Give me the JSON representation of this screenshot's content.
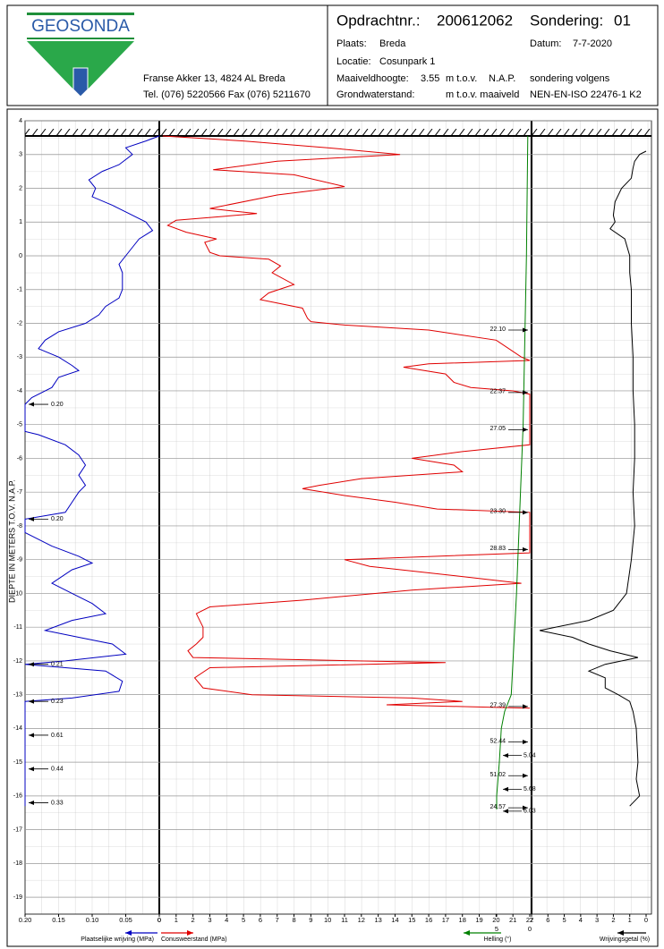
{
  "header": {
    "logo": "GEOSONDA",
    "address": "Franse Akker 13, 4824 AL Breda",
    "phone": "Tel. (076) 5220566 Fax (076) 5211670",
    "order_label": "Opdrachtnr.:",
    "order": "200612062",
    "probe_label": "Sondering:",
    "probe": "01",
    "place_label": "Plaats:",
    "place": "Breda",
    "date_label": "Datum:",
    "date": "7-7-2020",
    "location_label": "Locatie:",
    "location": "Cosunpark 1",
    "surface_label": "Maaiveldhoogte:",
    "surface": 3.55,
    "surface_unit": "m t.o.v.",
    "surface_ref": "N.A.P.",
    "norm_label": "sondering volgens",
    "water_label": "Grondwaterstand:",
    "water_unit": "m t.o.v. maaiveld",
    "norm": "NEN-EN-ISO 22476-1 K2"
  },
  "chart_data": {
    "type": "cpt",
    "ylabel": "DIEPTE IN METERS T.O.V. N.A.P.",
    "ylim": [
      4,
      -19.5
    ],
    "yticks": [
      4,
      3,
      2,
      1,
      0,
      -1,
      -2,
      -3,
      -4,
      -5,
      -6,
      -7,
      -8,
      -9,
      -10,
      -11,
      -12,
      -13,
      -14,
      -15,
      -16,
      -17,
      -18,
      -19
    ],
    "friction_axis": {
      "label": "Plaatselijke wrijving (MPa)",
      "xlim": [
        0.2,
        0
      ],
      "xticks": [
        {
          "value": 0.2,
          "label": "0.20"
        },
        0.15,
        {
          "value": 0.1,
          "label": "0.10"
        },
        0.05,
        0
      ]
    },
    "cone_axis": {
      "label": "Conusweerstand (MPa)",
      "xlim": [
        0,
        22
      ],
      "xticks": [
        0,
        1,
        2,
        3,
        4,
        5,
        6,
        7,
        8,
        9,
        10,
        11,
        12,
        13,
        14,
        15,
        16,
        17,
        18,
        19,
        20,
        21,
        22
      ]
    },
    "tilt_axis": {
      "label": "Helling (°)",
      "xlim": [
        0,
        5
      ],
      "xticks": [
        5,
        0
      ]
    },
    "ratio_axis": {
      "label": "Wrijvingsgetal (%)",
      "xlim": [
        7,
        0
      ],
      "xticks": [
        7,
        6,
        5,
        4,
        3,
        2,
        1,
        0
      ]
    },
    "series": [
      {
        "name": "Conusweerstand",
        "axis": "cone_axis",
        "color": "#e00000",
        "depth": [
          3.55,
          3.4,
          3.2,
          3.0,
          2.8,
          2.55,
          2.4,
          2.05,
          1.8,
          1.4,
          1.25,
          1.05,
          0.9,
          0.7,
          0.5,
          0.4,
          0.1,
          0.0,
          -0.1,
          -0.3,
          -0.5,
          -0.85,
          -1.1,
          -1.3,
          -1.55,
          -1.85,
          -1.95,
          -2.05,
          -2.2,
          -2.5,
          -3.0,
          -3.1,
          -3.2,
          -3.3,
          -3.5,
          -3.75,
          -3.9,
          -4.0,
          -4.1,
          -5.6,
          -5.8,
          -6.0,
          -6.2,
          -6.4,
          -6.6,
          -6.8,
          -6.9,
          -7.1,
          -7.3,
          -7.5,
          -7.6,
          -8.8,
          -9.0,
          -9.2,
          -9.5,
          -9.7,
          -9.9,
          -10.2,
          -10.4,
          -10.6,
          -11.0,
          -11.3,
          -11.5,
          -11.7,
          -11.9,
          -12.05,
          -12.2,
          -12.5,
          -12.8,
          -13.0,
          -13.1,
          -13.2,
          -13.3,
          -13.4
        ],
        "values": [
          0.2,
          5,
          10,
          14.3,
          7,
          3.2,
          8,
          11,
          7,
          3,
          5.8,
          1,
          0.5,
          1.6,
          3.4,
          2.7,
          3,
          3.6,
          6.5,
          7.2,
          6.7,
          8,
          6.5,
          6,
          8.5,
          8.8,
          9,
          11,
          16,
          20,
          21.5,
          22,
          16,
          14.5,
          17,
          17.5,
          18.5,
          21,
          22,
          22,
          18,
          15,
          17.5,
          18,
          12,
          9.5,
          8.5,
          11,
          14,
          16.5,
          22,
          22,
          11,
          12.5,
          18,
          21.5,
          15,
          8.5,
          3,
          2.2,
          2.6,
          2.6,
          2.2,
          1.7,
          2,
          17,
          3,
          2.1,
          2.6,
          5.5,
          15,
          18,
          13.5,
          22
        ]
      },
      {
        "name": "Plaatselijke wrijving",
        "axis": "friction_axis",
        "color": "#0000c0",
        "depth": [
          3.55,
          3.4,
          3.2,
          3.0,
          2.7,
          2.5,
          2.25,
          2.0,
          1.75,
          1.5,
          1.25,
          1.0,
          0.75,
          0.5,
          0.25,
          0.0,
          -0.25,
          -0.5,
          -1.0,
          -1.25,
          -1.5,
          -1.75,
          -2.0,
          -2.25,
          -2.5,
          -2.75,
          -3.0,
          -3.25,
          -3.4,
          -3.6,
          -3.9,
          -4.2,
          -4.4,
          -4.8,
          -5.2,
          -5.3,
          -5.6,
          -5.9,
          -6.2,
          -6.5,
          -6.8,
          -7.0,
          -7.3,
          -7.6,
          -7.8,
          -8.2,
          -8.6,
          -8.9,
          -9.1,
          -9.3,
          -9.7,
          -10.0,
          -10.3,
          -10.6,
          -10.8,
          -11.1,
          -11.3,
          -11.5,
          -11.8,
          -12.0,
          -12.1,
          -12.3,
          -12.6,
          -12.9,
          -13.1,
          -13.2,
          -13.4,
          -16.3
        ],
        "values": [
          0,
          0.02,
          0.05,
          0.04,
          0.06,
          0.085,
          0.105,
          0.095,
          0.1,
          0.07,
          0.045,
          0.02,
          0.01,
          0.03,
          0.04,
          0.05,
          0.06,
          0.055,
          0.055,
          0.06,
          0.08,
          0.09,
          0.11,
          0.15,
          0.17,
          0.18,
          0.15,
          0.13,
          0.12,
          0.15,
          0.16,
          0.19,
          0.2,
          0.2,
          0.2,
          0.18,
          0.14,
          0.12,
          0.11,
          0.12,
          0.11,
          0.12,
          0.13,
          0.14,
          0.2,
          0.2,
          0.16,
          0.12,
          0.1,
          0.13,
          0.16,
          0.13,
          0.1,
          0.08,
          0.13,
          0.17,
          0.12,
          0.07,
          0.05,
          0.14,
          0.2,
          0.08,
          0.055,
          0.06,
          0.13,
          0.2,
          0.2,
          0.2
        ]
      },
      {
        "name": "Helling",
        "axis": "tilt_axis",
        "color": "#008000",
        "depth": [
          3.55,
          0,
          -5,
          -10,
          -13,
          -13.5,
          -14,
          -15,
          -16,
          -16.4
        ],
        "values": [
          0.3,
          0.5,
          1.0,
          2.0,
          2.8,
          3.8,
          4.3,
          4.6,
          5.0,
          5.0
        ]
      },
      {
        "name": "Wrijvingsgetal",
        "axis": "ratio_axis",
        "color": "#000000",
        "depth": [
          3.1,
          3.0,
          2.8,
          2.6,
          2.3,
          2.0,
          1.6,
          1.2,
          1.0,
          0.8,
          0.5,
          0,
          -0.5,
          -1,
          -2,
          -3,
          -4,
          -5,
          -6,
          -7,
          -8,
          -9,
          -10,
          -10.5,
          -10.8,
          -11.1,
          -11.3,
          -11.5,
          -11.7,
          -11.9,
          -12.1,
          -12.3,
          -12.5,
          -12.8,
          -13,
          -13.2,
          -13.5,
          -14,
          -15,
          -15.5,
          -16,
          -16.3
        ],
        "values": [
          0,
          0.4,
          0.7,
          0.8,
          0.9,
          1.5,
          1.9,
          2,
          1.9,
          2.2,
          1.3,
          1,
          1,
          0.9,
          0.9,
          0.8,
          0.8,
          0.7,
          0.7,
          0.8,
          0.7,
          0.9,
          1.2,
          2,
          3.5,
          6.5,
          4.5,
          3.5,
          2.2,
          0.5,
          2.5,
          3.5,
          2.5,
          2.5,
          1.7,
          1,
          0.8,
          0.6,
          0.5,
          0.6,
          0.4,
          1
        ]
      }
    ],
    "annotations": {
      "cone": [
        {
          "depth": -2.2,
          "text": "22.10"
        },
        {
          "depth": -4.05,
          "text": "22.37"
        },
        {
          "depth": -5.15,
          "text": "27.05"
        },
        {
          "depth": -7.6,
          "text": "23.30"
        },
        {
          "depth": -8.7,
          "text": "28.83"
        },
        {
          "depth": -13.35,
          "text": "27.39"
        },
        {
          "depth": -14.4,
          "text": "52.44"
        },
        {
          "depth": -15.4,
          "text": "51.02"
        },
        {
          "depth": -16.35,
          "text": "24.57"
        }
      ],
      "tilt": [
        {
          "depth": -14.8,
          "text": "5.04"
        },
        {
          "depth": -15.8,
          "text": "5.68"
        },
        {
          "depth": -16.45,
          "text": "6.03"
        }
      ],
      "friction": [
        {
          "depth": -4.4,
          "text": "0.20"
        },
        {
          "depth": -7.8,
          "text": "0.20"
        },
        {
          "depth": -12.1,
          "text": "0.21"
        },
        {
          "depth": -13.2,
          "text": "0.23"
        },
        {
          "depth": -14.2,
          "text": "0.61"
        },
        {
          "depth": -15.2,
          "text": "0.44"
        },
        {
          "depth": -16.2,
          "text": "0.33"
        }
      ]
    }
  }
}
